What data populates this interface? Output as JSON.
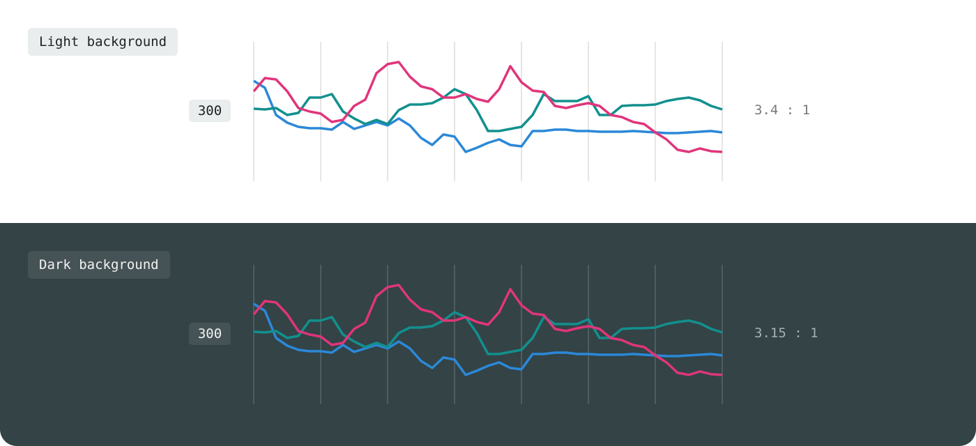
{
  "ylim": [
    0,
    200
  ],
  "xticks": [
    0,
    6,
    12,
    18,
    24,
    30,
    36,
    42
  ],
  "series": [
    {
      "color": "#2b88d8",
      "values": [
        144,
        134,
        95,
        84,
        78,
        76,
        76,
        74,
        85,
        75,
        80,
        85,
        80,
        90,
        80,
        62,
        52,
        67,
        64,
        42,
        48,
        55,
        60,
        52,
        50,
        72,
        72,
        74,
        74,
        72,
        72,
        71,
        71,
        71,
        72,
        71,
        70,
        69,
        69,
        70,
        71,
        72,
        70
      ]
    },
    {
      "color": "#12908e",
      "values": [
        104,
        103,
        105,
        95,
        98,
        120,
        120,
        125,
        100,
        90,
        82,
        88,
        82,
        102,
        110,
        110,
        112,
        120,
        132,
        125,
        102,
        72,
        72,
        75,
        78,
        95,
        125,
        115,
        115,
        115,
        122,
        95,
        95,
        108,
        109,
        109,
        110,
        115,
        118,
        120,
        116,
        108,
        103
      ]
    },
    {
      "color": "#e0357a",
      "values": [
        129,
        148,
        146,
        129,
        105,
        100,
        97,
        85,
        88,
        108,
        117,
        155,
        168,
        171,
        150,
        136,
        132,
        120,
        120,
        125,
        118,
        114,
        132,
        165,
        142,
        130,
        128,
        108,
        105,
        109,
        112,
        108,
        95,
        92,
        85,
        82,
        70,
        60,
        45,
        42,
        47,
        43,
        42
      ]
    }
  ],
  "panels": [
    {
      "label": "Light background",
      "badge": "300",
      "ratio": "3.4 : 1"
    },
    {
      "label": "Dark background",
      "badge": "300",
      "ratio": "3.15 : 1"
    }
  ]
}
